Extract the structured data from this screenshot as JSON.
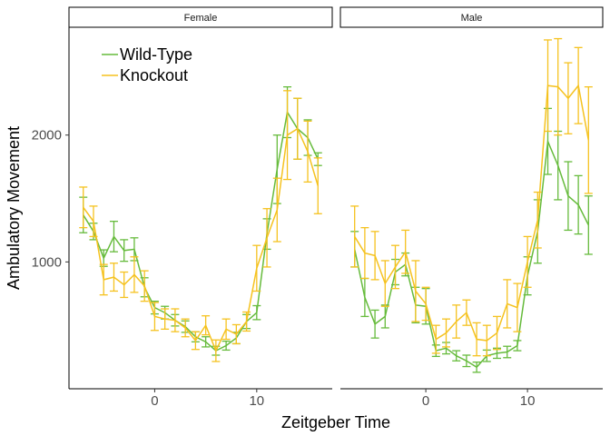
{
  "chart_data": {
    "type": "line",
    "xlabel": "Zeitgeber Time",
    "ylabel": "Ambulatory Movement",
    "xlim": [
      -8.4,
      17.4
    ],
    "ylim": [
      0,
      2850
    ],
    "x_ticks": [
      0,
      10
    ],
    "x_tick_labels": [
      "0",
      "10"
    ],
    "y_ticks": [
      1000,
      2000
    ],
    "y_tick_labels": [
      "1000",
      "2000"
    ],
    "grid": false,
    "legend": {
      "position": "top-left",
      "entries": [
        "Wild-Type",
        "Knockout"
      ]
    },
    "colors": {
      "Wild-Type": "#66bb3c",
      "Knockout": "#f5c21f"
    },
    "x": [
      -7,
      -6,
      -5,
      -4,
      -3,
      -2,
      -1,
      0,
      1,
      2,
      3,
      4,
      5,
      6,
      7,
      8,
      9,
      10,
      11,
      12,
      13,
      14,
      15,
      16
    ],
    "panels": [
      {
        "name": "Female",
        "series": [
          {
            "name": "Wild-Type",
            "values": [
              1370,
              1240,
              1030,
              1200,
              1090,
              1100,
              800,
              640,
              600,
              540,
              490,
              410,
              370,
              300,
              340,
              400,
              530,
              600,
              1220,
              1730,
              2180,
              2050,
              1980,
              1810
            ],
            "errors": [
              140,
              65,
              65,
              120,
              85,
              90,
              75,
              50,
              50,
              45,
              45,
              40,
              40,
              35,
              35,
              45,
              55,
              55,
              120,
              270,
              200,
              240,
              140,
              50
            ]
          },
          {
            "name": "Knockout",
            "values": [
              1430,
              1320,
              860,
              880,
              820,
              900,
              810,
              570,
              550,
              540,
              480,
              380,
              500,
              300,
              470,
              430,
              530,
              950,
              1190,
              1410,
              2000,
              2050,
              1870,
              1600
            ],
            "errors": [
              160,
              120,
              120,
              110,
              100,
              140,
              120,
              110,
              80,
              90,
              70,
              70,
              75,
              85,
              80,
              75,
              75,
              180,
              230,
              250,
              350,
              240,
              240,
              220
            ]
          }
        ]
      },
      {
        "name": "Male",
        "series": [
          {
            "name": "Wild-Type",
            "values": [
              1100,
              720,
              510,
              570,
              920,
              980,
              660,
              650,
              300,
              320,
              260,
              220,
              170,
              260,
              280,
              290,
              340,
              890,
              1240,
              1950,
              1760,
              1520,
              1450,
              1290
            ],
            "errors": [
              140,
              150,
              110,
              90,
              100,
              90,
              140,
              140,
              45,
              45,
              40,
              45,
              40,
              45,
              40,
              45,
              40,
              150,
              250,
              260,
              270,
              270,
              230,
              230
            ]
          },
          {
            "name": "Knockout",
            "values": [
              1200,
              1070,
              1050,
              830,
              960,
              1080,
              770,
              670,
              390,
              440,
              530,
              600,
              390,
              380,
              440,
              670,
              640,
              1000,
              1330,
              2390,
              2380,
              2290,
              2390,
              1960
            ],
            "errors": [
              240,
              200,
              190,
              180,
              170,
              170,
              240,
              130,
              110,
              110,
              130,
              100,
              130,
              120,
              130,
              190,
              190,
              200,
              220,
              360,
              380,
              280,
              300,
              420
            ]
          }
        ]
      }
    ]
  }
}
